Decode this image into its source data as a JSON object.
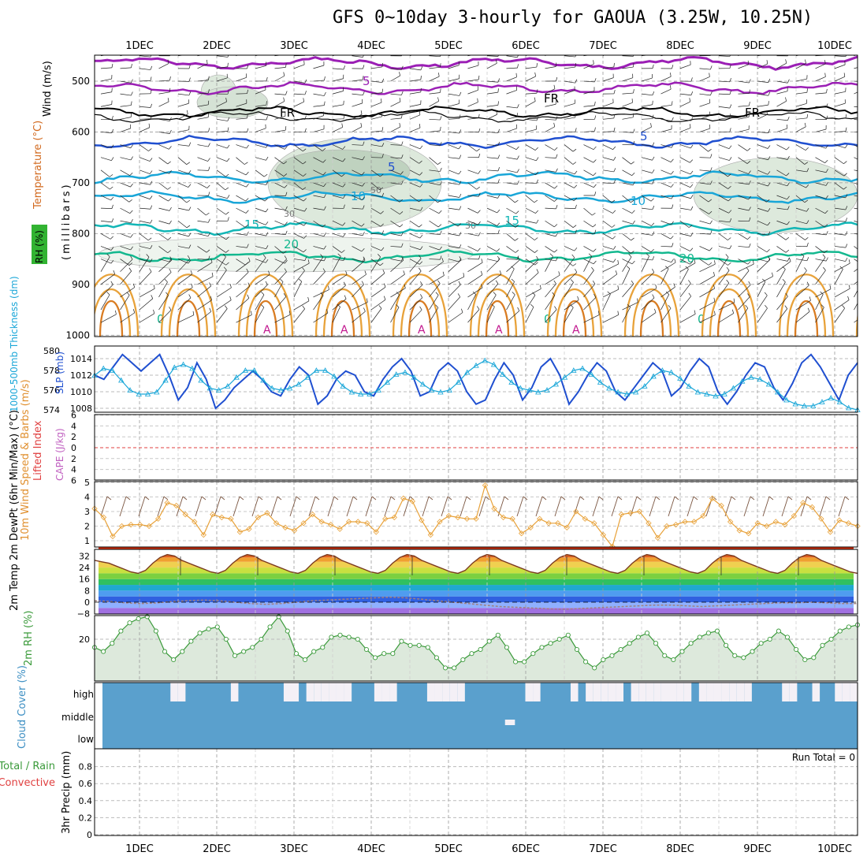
{
  "title": "GFS 0~10day 3-hourly for GAOUA (3.25W, 10.25N)",
  "days": [
    "1DEC",
    "2DEC",
    "3DEC",
    "4DEC",
    "5DEC",
    "6DEC",
    "7DEC",
    "8DEC",
    "9DEC",
    "10DEC"
  ],
  "colors": {
    "grid": "#9a9a9a",
    "purple": "#9b1fb5",
    "black": "#000000",
    "blue": "#1f4fd0",
    "cyan": "#19a6d8",
    "teal1": "#13b6b6",
    "teal2": "#13b88f",
    "orange": "#e8a23a",
    "darkorange": "#d97c22",
    "rhshade": "#dde9dc",
    "cloud": "#5aa0cd"
  },
  "chart_data": [
    {
      "type": "contour",
      "panel": "upper-air",
      "ylabel": "(millibars)",
      "side_labels": [
        "Wind (m/s)",
        "Temperature (°C)",
        "RH (%)"
      ],
      "ylim": [
        450,
        1000
      ],
      "y_ticks": [
        500,
        600,
        700,
        800,
        900,
        1000
      ],
      "contour_labels": [
        "5",
        "FR",
        "FR",
        "FR",
        "5",
        "5",
        "10",
        "10",
        "15",
        "15",
        "20",
        "20",
        "30",
        "30",
        "50",
        "0",
        "0",
        "0"
      ],
      "isotherms_deg_c": [
        -5,
        0,
        5,
        10,
        15,
        20,
        25,
        30,
        35
      ]
    },
    {
      "type": "line",
      "panel": "thickness-slp",
      "ylabel_left": "1000-500mb Thickness (dm)",
      "ylabel_right": "SLP (mb)",
      "left_ticks": [
        574,
        576,
        578,
        580
      ],
      "right_ticks": [
        1008,
        1010,
        1012,
        1014
      ],
      "series": [
        {
          "name": "SLP (mb)",
          "values": [
            1012,
            1011.5,
            1013,
            1014.5,
            1013.5,
            1012.5,
            1013.5,
            1014.5,
            1012,
            1009,
            1010.5,
            1013.5,
            1011.5,
            1008,
            1009,
            1010.5,
            1011.5,
            1012.5,
            1011.5,
            1010,
            1009.5,
            1011.5,
            1013,
            1012,
            1008.5,
            1009.5,
            1011.5,
            1012.5,
            1012,
            1010,
            1009.5,
            1011.5,
            1013,
            1014,
            1012.5,
            1009.5,
            1010,
            1012.5,
            1013.5,
            1012.5,
            1010,
            1008.5,
            1009,
            1011.5,
            1013.5,
            1012,
            1009,
            1010.5,
            1013,
            1014,
            1012,
            1008.5,
            1010,
            1012,
            1013.5,
            1012.5,
            1010,
            1009,
            1010.5,
            1012,
            1013.5,
            1012.5,
            1009.5,
            1010.5,
            1012.5,
            1014,
            1013,
            1010,
            1008.5,
            1010,
            1012,
            1013.5,
            1013,
            1010.5,
            1009,
            1011,
            1013.5,
            1014.5,
            1013,
            1011,
            1009,
            1012,
            1013.5
          ]
        },
        {
          "name": "Thickness (dm)",
          "values": [
            577.5,
            578.2,
            578,
            577,
            576,
            575.6,
            575.6,
            575.8,
            577,
            578.3,
            578.6,
            578.2,
            577,
            576.2,
            576,
            576.4,
            577.3,
            578,
            578,
            577,
            576.2,
            576,
            576.2,
            576.6,
            577.3,
            578,
            578,
            577.4,
            576.4,
            575.8,
            575.6,
            575.6,
            576,
            576.8,
            577.6,
            577.8,
            577.3,
            576.6,
            576,
            575.8,
            576,
            576.8,
            577.8,
            578.5,
            579,
            578.6,
            577.6,
            576.8,
            576.2,
            576,
            575.8,
            576,
            576.6,
            577.3,
            578,
            578.2,
            577.6,
            576.8,
            576.2,
            575.8,
            575.6,
            575.8,
            576.4,
            577.4,
            578,
            577.8,
            577.2,
            576.4,
            575.8,
            575.6,
            575.4,
            575.6,
            576.2,
            576.9,
            577.3,
            577.1,
            576.6,
            575.8,
            575,
            574.6,
            574.4,
            574.4,
            574.8,
            575.2,
            574.8,
            574.2,
            574
          ]
        }
      ]
    },
    {
      "type": "line",
      "panel": "cape-li",
      "ylabel_left": "Lifted Index",
      "ylabel_right": "CAPE (J/kg)",
      "left_ticks": [
        -6,
        -4,
        -2,
        0,
        2,
        4,
        6
      ],
      "tick_labels": [
        "6",
        "4",
        "2",
        "0",
        "2",
        "4",
        "6"
      ],
      "zero_line": 0
    },
    {
      "type": "line",
      "panel": "wind10m",
      "ylabel": "10m Wind Speed & Barbs (m/s)",
      "ylim": [
        0.5,
        5
      ],
      "y_ticks": [
        1,
        2,
        3,
        4,
        5
      ],
      "series": [
        {
          "name": "10m Wind Speed",
          "values": [
            3.2,
            2.6,
            1.3,
            2,
            2.1,
            2.1,
            2,
            2.5,
            3.6,
            3.4,
            2.8,
            2.3,
            1.4,
            2.8,
            2.6,
            2.5,
            1.6,
            1.8,
            2.6,
            2.9,
            2.2,
            1.9,
            1.7,
            2.2,
            2.8,
            2.3,
            2.1,
            1.8,
            2.3,
            2.3,
            2.2,
            1.6,
            2.5,
            2.6,
            3.9,
            3.7,
            2.4,
            1.4,
            2.3,
            2.7,
            2.6,
            2.5,
            2.5,
            4.8,
            3.2,
            2.6,
            2.5,
            1.5,
            1.9,
            2.5,
            2.2,
            2.2,
            1.9,
            3,
            2.5,
            2.2,
            1.4,
            0.6,
            2.8,
            2.9,
            3,
            2.2,
            1.2,
            2,
            2.1,
            2.3,
            2.3,
            2.7,
            3.9,
            3.4,
            2.3,
            1.7,
            1.5,
            2.2,
            2,
            2.3,
            2.1,
            2.7,
            3.6,
            3.3,
            2.5,
            1.6,
            2.4,
            2.2,
            2
          ]
        }
      ]
    },
    {
      "type": "area",
      "panel": "temperature",
      "ylabel": "2m Temp 2m DewPt (6hr Min/Max) (°C)",
      "y_ticks": [
        -8,
        0,
        8,
        16,
        24,
        32
      ],
      "series": [
        {
          "name": "2m Temp",
          "values": [
            29,
            28,
            27,
            25,
            23,
            21,
            20,
            22,
            27,
            31,
            33,
            32,
            29,
            27,
            25,
            23,
            21,
            20,
            22,
            27,
            31,
            33,
            32,
            29,
            27,
            25,
            23,
            21,
            20,
            22,
            27,
            31,
            33,
            32,
            29,
            27,
            25,
            23,
            21,
            20,
            22,
            27,
            31,
            33,
            32,
            29,
            27,
            25,
            23,
            21,
            20,
            22,
            27,
            31,
            33,
            32,
            29,
            27,
            25,
            23,
            21,
            20,
            22,
            27,
            31,
            33,
            32,
            29,
            27,
            25,
            23,
            21,
            20,
            22,
            27,
            31,
            33,
            32,
            29,
            27,
            25,
            23,
            21,
            20,
            22,
            27,
            31,
            33,
            32,
            29,
            27,
            25,
            23,
            21,
            20,
            22,
            27,
            31,
            33,
            32,
            29,
            27,
            25,
            23,
            21,
            20
          ]
        },
        {
          "name": "2m DewPt",
          "values": [
            1,
            0.5,
            -0.5,
            -1,
            -0.5,
            0.5,
            1,
            1.5,
            1,
            0,
            -1,
            -1.5,
            -1,
            0,
            1,
            1.5,
            2,
            2.5,
            3,
            3.5,
            3,
            2,
            1,
            0,
            -1,
            -2,
            -3,
            -3.5,
            -4,
            -4.5,
            -5,
            -4.5,
            -4,
            -3.5,
            -3,
            -2.5,
            -2,
            -2,
            -2.5,
            -3,
            -2.5,
            -2,
            -1.5,
            -1,
            -0.5,
            -0.5,
            0,
            -0.5,
            -1,
            -1
          ]
        }
      ]
    },
    {
      "type": "area",
      "panel": "rh",
      "ylabel": "2m RH (%)",
      "y_ticks": [
        20
      ],
      "series": [
        {
          "name": "2m RH",
          "values": [
            16,
            14,
            18,
            24,
            28,
            30,
            31,
            24,
            14,
            10,
            14,
            19,
            23,
            25,
            26,
            20,
            12,
            14,
            16,
            20,
            26,
            31,
            24,
            13,
            10,
            14,
            16,
            21,
            22,
            21,
            20,
            15,
            11,
            13,
            13,
            19,
            17,
            17,
            16,
            11,
            6,
            6,
            10,
            13,
            15,
            19,
            22,
            16,
            9,
            9,
            13,
            16,
            18,
            20,
            22,
            15,
            9,
            6,
            10,
            12,
            15,
            18,
            21,
            23,
            18,
            12,
            10,
            14,
            18,
            21,
            23,
            24,
            17,
            12,
            11,
            14,
            18,
            20,
            24,
            21,
            15,
            10,
            11,
            17,
            20,
            24,
            26,
            27
          ]
        }
      ]
    },
    {
      "type": "heatmap",
      "panel": "cloud",
      "ylabel": "Cloud Cover (%)",
      "rows": [
        "high",
        "middle",
        "low"
      ],
      "high_clear_steps": [
        9,
        10,
        17,
        24,
        25,
        27,
        28,
        29,
        30,
        31,
        32,
        36,
        37,
        38,
        43,
        44,
        45,
        46,
        47,
        56,
        57,
        62,
        64,
        65,
        66,
        67,
        68,
        70,
        71,
        72,
        73,
        74,
        75,
        76,
        77,
        79,
        80,
        81,
        82,
        83,
        84,
        85,
        90,
        91,
        94,
        97,
        98,
        99
      ],
      "middle_clear_steps": [
        53
      ]
    },
    {
      "type": "bar",
      "panel": "precip",
      "ylabel": "3hr Precip (mm)",
      "legend": [
        "Total / Rain",
        "Convective"
      ],
      "ylim": [
        0,
        1
      ],
      "y_ticks": [
        "0",
        "0.2",
        "0.4",
        "0.6",
        "0.8"
      ],
      "values": [],
      "annotation": "Run Total = 0"
    }
  ]
}
